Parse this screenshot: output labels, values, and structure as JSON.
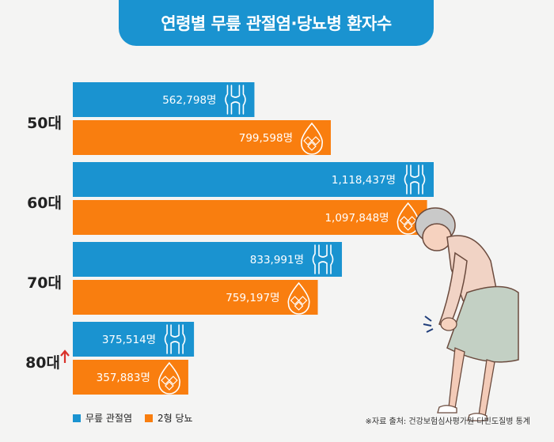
{
  "title": "연령별 무릎 관절염·당뇨병 환자수",
  "colors": {
    "knee": "#1a93d0",
    "diabetes": "#f97e0f",
    "title_bg": "#1a93d0",
    "arrow": "#d9312a"
  },
  "chart_data": {
    "type": "bar",
    "orientation": "horizontal",
    "categories": [
      "50대",
      "60대",
      "70대",
      "80대"
    ],
    "category_suffix_icon": [
      null,
      null,
      null,
      "up-arrow"
    ],
    "series": [
      {
        "name": "무릎 관절염",
        "values": [
          562798,
          1118437,
          833991,
          375514
        ],
        "labels": [
          "562,798명",
          "1,118,437명",
          "833,991명",
          "375,514명"
        ],
        "icon": "knee-joint-icon"
      },
      {
        "name": "2형 당뇨",
        "values": [
          799598,
          1097848,
          759197,
          357883
        ],
        "labels": [
          "799,598명",
          "1,097,848명",
          "759,197명",
          "357,883명"
        ],
        "icon": "sugar-drop-icon"
      }
    ],
    "xlim": [
      0,
      1118437
    ],
    "legend_position": "bottom-left"
  },
  "source": "※자료 출처: 건강보험심사평가원 다빈도질병 통계"
}
